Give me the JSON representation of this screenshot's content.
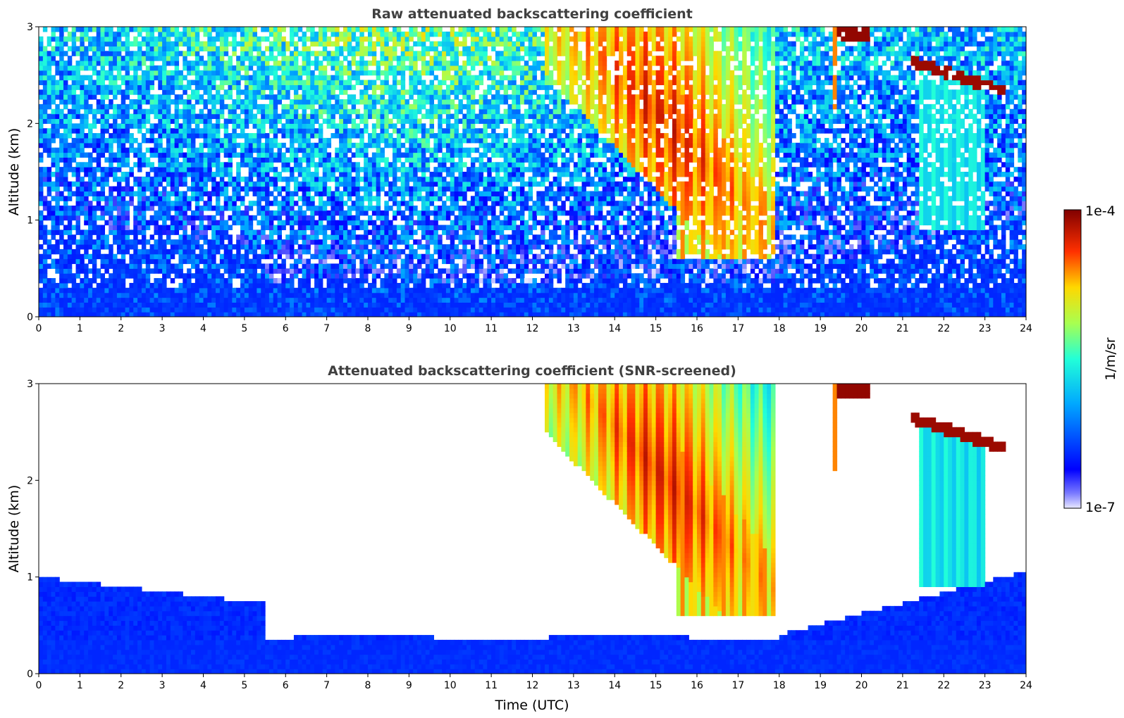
{
  "chart_data": [
    {
      "type": "heatmap",
      "title": "Raw attenuated backscattering coefficient",
      "xlabel": "",
      "ylabel": "Altitude (km)",
      "xlim": [
        0,
        24
      ],
      "ylim": [
        0,
        3
      ],
      "x_ticks": [
        "0",
        "1",
        "2",
        "3",
        "4",
        "5",
        "6",
        "7",
        "8",
        "9",
        "10",
        "11",
        "12",
        "13",
        "14",
        "15",
        "16",
        "17",
        "18",
        "19",
        "20",
        "21",
        "22",
        "23",
        "24"
      ],
      "y_ticks": [
        "0",
        "1",
        "2",
        "3"
      ],
      "screened": false
    },
    {
      "type": "heatmap",
      "title": "Attenuated backscattering coefficient (SNR-screened)",
      "xlabel": "Time (UTC)",
      "ylabel": "Altitude (km)",
      "xlim": [
        0,
        24
      ],
      "ylim": [
        0,
        3
      ],
      "x_ticks": [
        "0",
        "1",
        "2",
        "3",
        "4",
        "5",
        "6",
        "7",
        "8",
        "9",
        "10",
        "11",
        "12",
        "13",
        "14",
        "15",
        "16",
        "17",
        "18",
        "19",
        "20",
        "21",
        "22",
        "23",
        "24"
      ],
      "y_ticks": [
        "0",
        "1",
        "2",
        "3"
      ],
      "screened": true
    }
  ],
  "colorbar": {
    "label": "1/m/sr",
    "max_label": "1e-4",
    "min_label": "1e-7",
    "scale": "log",
    "colormap": "jet"
  }
}
